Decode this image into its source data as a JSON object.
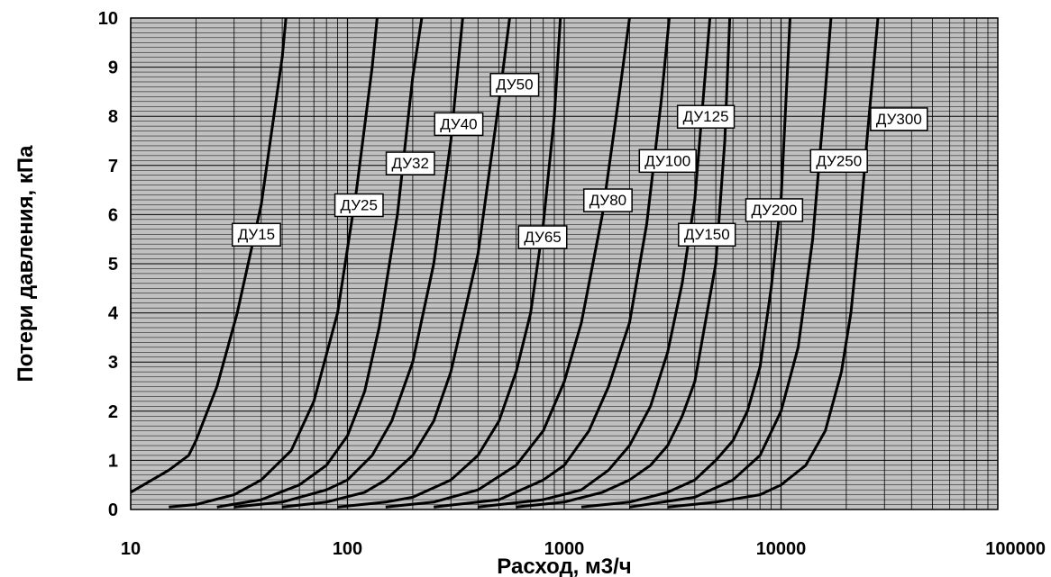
{
  "chart_data": {
    "type": "line",
    "xscale": "log",
    "xlim": [
      10,
      100000
    ],
    "ylim": [
      0,
      10
    ],
    "grid": true,
    "xlabel": "Расход, м3/ч",
    "ylabel": "Потери давления, кПа",
    "xticks": [
      "10",
      "100",
      "1000",
      "10000",
      "100000"
    ],
    "yticks": [
      "0",
      "1",
      "2",
      "3",
      "4",
      "5",
      "6",
      "7",
      "8",
      "9",
      "10"
    ],
    "colors": {
      "plot_bg": "#c0c0c0",
      "grid": "#000000",
      "line": "#000000",
      "label_bg": "#ffffff"
    },
    "series": [
      {
        "name": "ДУ15",
        "x": [
          10,
          15,
          18.5,
          20,
          25,
          31,
          40,
          50,
          52
        ],
        "y": [
          0.35,
          0.8,
          1.1,
          1.4,
          2.5,
          4,
          6.2,
          9.2,
          10
        ]
      },
      {
        "name": "ДУ25",
        "x": [
          15,
          20,
          30,
          40,
          55,
          70,
          90,
          110,
          130,
          137
        ],
        "y": [
          0.05,
          0.1,
          0.3,
          0.6,
          1.2,
          2.2,
          4,
          6.5,
          9,
          10
        ]
      },
      {
        "name": "ДУ32",
        "x": [
          25,
          40,
          60,
          80,
          100,
          120,
          140,
          170,
          200,
          220
        ],
        "y": [
          0.05,
          0.2,
          0.5,
          0.9,
          1.5,
          2.4,
          3.7,
          6,
          8.8,
          10
        ]
      },
      {
        "name": "ДУ40",
        "x": [
          30,
          50,
          80,
          100,
          130,
          160,
          200,
          250,
          300,
          340
        ],
        "y": [
          0.05,
          0.15,
          0.4,
          0.6,
          1.1,
          1.8,
          3,
          5,
          7.5,
          10
        ]
      },
      {
        "name": "ДУ50",
        "x": [
          50,
          80,
          120,
          150,
          200,
          250,
          300,
          400,
          500,
          560
        ],
        "y": [
          0.05,
          0.15,
          0.35,
          0.6,
          1.1,
          1.8,
          2.8,
          5.2,
          8.3,
          10
        ]
      },
      {
        "name": "ДУ65",
        "x": [
          90,
          150,
          200,
          300,
          400,
          500,
          600,
          700,
          800,
          900,
          960
        ],
        "y": [
          0.05,
          0.15,
          0.25,
          0.6,
          1.1,
          1.8,
          2.8,
          4,
          5.8,
          8,
          10
        ]
      },
      {
        "name": "ДУ80",
        "x": [
          150,
          250,
          400,
          600,
          800,
          1000,
          1200,
          1500,
          1800,
          2000
        ],
        "y": [
          0.05,
          0.15,
          0.4,
          0.9,
          1.6,
          2.6,
          3.8,
          6,
          8.5,
          10
        ]
      },
      {
        "name": "ДУ100",
        "x": [
          250,
          500,
          800,
          1000,
          1300,
          1600,
          2000,
          2400,
          2800,
          3050
        ],
        "y": [
          0.05,
          0.2,
          0.6,
          0.9,
          1.6,
          2.5,
          3.8,
          5.8,
          8.3,
          10
        ]
      },
      {
        "name": "ДУ125",
        "x": [
          400,
          800,
          1200,
          1600,
          2000,
          2500,
          3000,
          3500,
          4000,
          4700
        ],
        "y": [
          0.05,
          0.2,
          0.4,
          0.8,
          1.3,
          2.1,
          3.2,
          4.6,
          6.3,
          10
        ]
      },
      {
        "name": "ДУ150",
        "x": [
          600,
          1000,
          1500,
          2000,
          2500,
          3000,
          3500,
          4000,
          5000,
          5500,
          5800
        ],
        "y": [
          0.05,
          0.15,
          0.35,
          0.6,
          0.9,
          1.3,
          1.9,
          2.6,
          5,
          7.5,
          10
        ]
      },
      {
        "name": "ДУ200",
        "x": [
          1200,
          2000,
          3000,
          4000,
          5000,
          6000,
          7000,
          8000,
          9000,
          10000,
          11000
        ],
        "y": [
          0.05,
          0.15,
          0.35,
          0.6,
          1,
          1.4,
          2,
          2.9,
          4.5,
          6.3,
          10
        ]
      },
      {
        "name": "ДУ250",
        "x": [
          2000,
          4000,
          6000,
          8000,
          10000,
          12000,
          14000,
          16000,
          17000
        ],
        "y": [
          0.05,
          0.25,
          0.6,
          1.1,
          2,
          3.3,
          5.5,
          8.5,
          10
        ]
      },
      {
        "name": "ДУ300",
        "x": [
          3000,
          5000,
          8000,
          10000,
          13000,
          16000,
          19000,
          21000,
          23000,
          25000,
          28000
        ],
        "y": [
          0.05,
          0.15,
          0.3,
          0.5,
          0.9,
          1.6,
          2.8,
          4,
          5.7,
          7.6,
          10
        ]
      }
    ],
    "labels": [
      {
        "text": "ДУ15",
        "x": 38,
        "y": 5.6
      },
      {
        "text": "ДУ25",
        "x": 113,
        "y": 6.2
      },
      {
        "text": "ДУ32",
        "x": 195,
        "y": 7.05
      },
      {
        "text": "ДУ40",
        "x": 326,
        "y": 7.85
      },
      {
        "text": "ДУ50",
        "x": 590,
        "y": 8.65
      },
      {
        "text": "ДУ65",
        "x": 795,
        "y": 5.55
      },
      {
        "text": "ДУ80",
        "x": 1590,
        "y": 6.3
      },
      {
        "text": "ДУ100",
        "x": 3000,
        "y": 7.1
      },
      {
        "text": "ДУ125",
        "x": 4500,
        "y": 8.0
      },
      {
        "text": "ДУ150",
        "x": 4550,
        "y": 5.6
      },
      {
        "text": "ДУ200",
        "x": 9300,
        "y": 6.1
      },
      {
        "text": "ДУ250",
        "x": 18500,
        "y": 7.1
      },
      {
        "text": "ДУ300",
        "x": 35000,
        "y": 7.95
      }
    ]
  }
}
